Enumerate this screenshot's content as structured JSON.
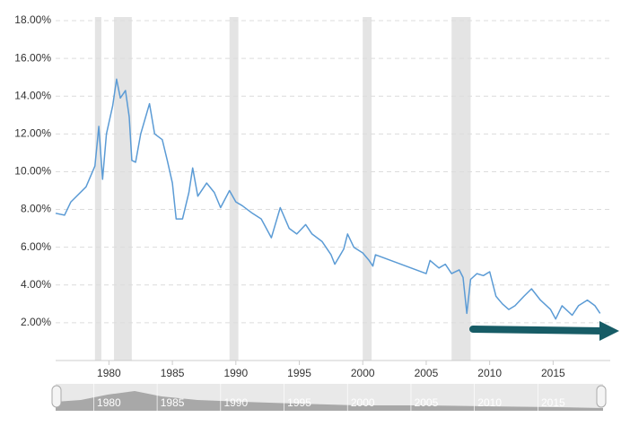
{
  "chart_data": {
    "type": "line",
    "x": [
      1975.8,
      1976.5,
      1977,
      1978.2,
      1978.9,
      1979.2,
      1979.5,
      1979.8,
      1980.3,
      1980.6,
      1980.9,
      1981.3,
      1981.6,
      1981.8,
      1982.1,
      1982.5,
      1983.2,
      1983.6,
      1984.2,
      1984.6,
      1985.0,
      1985.3,
      1985.8,
      1986.3,
      1986.6,
      1987.0,
      1987.7,
      1988.3,
      1988.8,
      1989.5,
      1990.0,
      1990.5,
      1991.3,
      1992.0,
      1992.8,
      1993.5,
      1994.2,
      1994.8,
      1995.5,
      1996.0,
      1996.8,
      1997.5,
      1997.8,
      1998.5,
      1998.8,
      1999.3,
      2000.0,
      2000.5,
      2000.8,
      2001.0,
      2005.0,
      2005.3,
      2006.0,
      2006.5,
      2007.0,
      2007.6,
      2007.9,
      2008.2,
      2008.5,
      2009.0,
      2009.5,
      2010.0,
      2010.5,
      2011.0,
      2011.5,
      2012.0,
      2012.7,
      2013.3,
      2014.0,
      2014.8,
      2015.2,
      2015.7,
      2016.5,
      2017.0,
      2017.7,
      2018.3,
      2018.7
    ],
    "series": [
      {
        "color": "#5b9bd5",
        "values": [
          7.8,
          7.7,
          8.4,
          9.2,
          10.3,
          12.4,
          9.6,
          12.0,
          13.5,
          14.9,
          13.9,
          14.3,
          12.9,
          10.6,
          10.5,
          12.0,
          13.6,
          12.0,
          11.7,
          10.6,
          9.4,
          7.5,
          7.5,
          8.9,
          10.2,
          8.7,
          9.4,
          8.9,
          8.1,
          9.0,
          8.4,
          8.2,
          7.8,
          7.5,
          6.5,
          8.1,
          7.0,
          6.7,
          7.2,
          6.7,
          6.3,
          5.6,
          5.1,
          5.9,
          6.7,
          6.0,
          5.7,
          5.3,
          5.0,
          5.6,
          4.6,
          5.3,
          4.9,
          5.1,
          4.6,
          4.8,
          4.4,
          2.5,
          4.3,
          4.6,
          4.5,
          4.7,
          3.4,
          3.0,
          2.7,
          2.9,
          3.4,
          3.8,
          3.2,
          2.7,
          2.2,
          2.9,
          2.4,
          2.9,
          3.2,
          2.9,
          2.5
        ]
      }
    ],
    "shaded_ranges": [
      [
        1978.9,
        1979.4
      ],
      [
        1980.4,
        1981.8
      ],
      [
        1989.5,
        1990.2
      ],
      [
        2000.0,
        2000.7
      ],
      [
        2007.0,
        2008.5
      ]
    ],
    "shade_color": "#e4e4e4",
    "xlim": [
      1975.8,
      2019.5
    ],
    "xticks": [
      1980,
      1985,
      1990,
      1995,
      2000,
      2005,
      2010,
      2015
    ],
    "ylim": [
      0,
      18
    ],
    "yticks": [
      {
        "value": 2,
        "label": "2.00%"
      },
      {
        "value": 4,
        "label": "4.00%"
      },
      {
        "value": 6,
        "label": "6.00%"
      },
      {
        "value": 8,
        "label": "8.00%"
      },
      {
        "value": 10,
        "label": "10.00%"
      },
      {
        "value": 12,
        "label": "12.00%"
      },
      {
        "value": 14,
        "label": "14.00%"
      },
      {
        "value": 16,
        "label": "16.00%"
      },
      {
        "value": 18,
        "label": "18.00%"
      }
    ],
    "grid": true
  }
}
